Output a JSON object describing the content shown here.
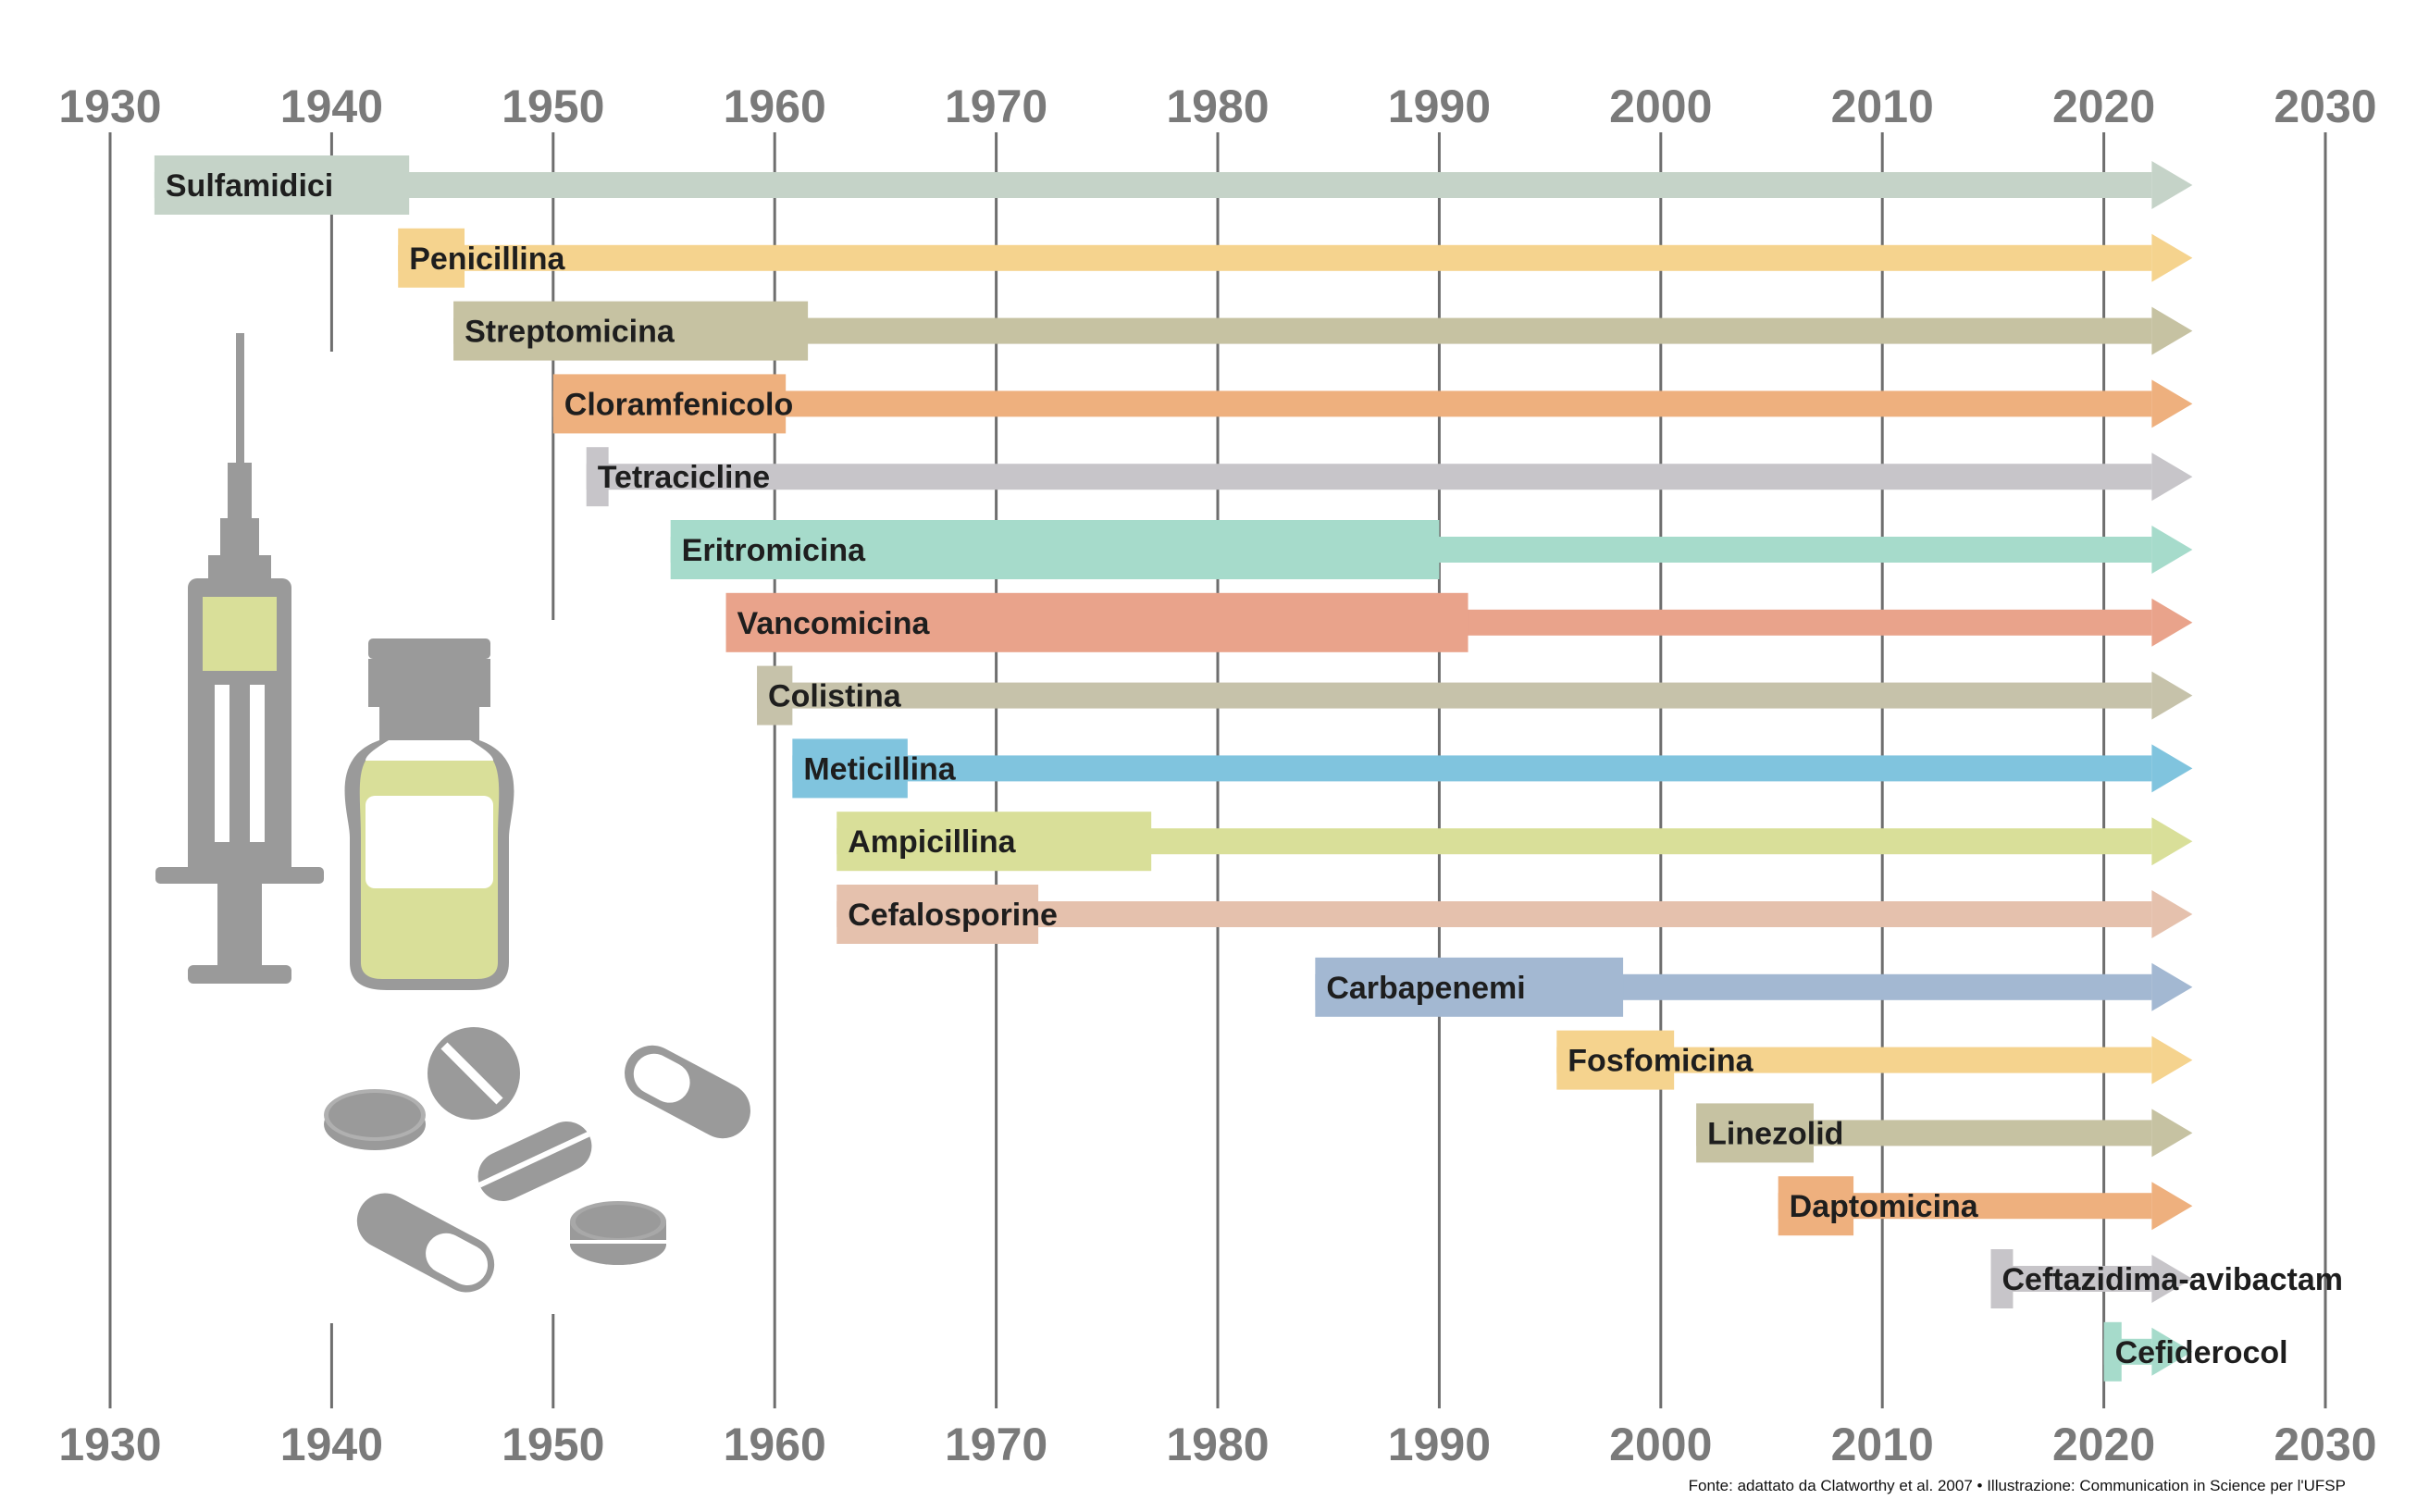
{
  "chart_data": {
    "type": "timeline",
    "x_axis_ticks": [
      1930,
      1940,
      1950,
      1960,
      1970,
      1980,
      1990,
      2000,
      2010,
      2020,
      2030
    ],
    "xlim": [
      1930,
      2030
    ],
    "grid": true,
    "arrow_end": 2024,
    "series": [
      {
        "name": "Sulfamidici",
        "start": 1932,
        "end": 1943.5,
        "color": "#c5d3c8"
      },
      {
        "name": "Penicillina",
        "start": 1943,
        "end": 1946,
        "color": "#f5d38e"
      },
      {
        "name": "Streptomicina",
        "start": 1945.5,
        "end": 1961.5,
        "color": "#c6c2a2"
      },
      {
        "name": "Cloramfenicolo",
        "start": 1950,
        "end": 1960.5,
        "color": "#eeb07e"
      },
      {
        "name": "Tetracicline",
        "start": 1951.5,
        "end": 1952.5,
        "color": "#c7c5c9"
      },
      {
        "name": "Eritromicina",
        "start": 1955.3,
        "end": 1990,
        "color": "#a6dbcb"
      },
      {
        "name": "Vancomicina",
        "start": 1957.8,
        "end": 1991.3,
        "color": "#e9a38b"
      },
      {
        "name": "Colistina",
        "start": 1959.2,
        "end": 1960.8,
        "color": "#c6c2aa"
      },
      {
        "name": "Meticillina",
        "start": 1960.8,
        "end": 1966,
        "color": "#80c4de"
      },
      {
        "name": "Ampicillina",
        "start": 1962.8,
        "end": 1977,
        "color": "#d9df99"
      },
      {
        "name": "Cefalosporine",
        "start": 1962.8,
        "end": 1971.9,
        "color": "#e5c1ad"
      },
      {
        "name": "Carbapenemi",
        "start": 1984.4,
        "end": 1998.3,
        "color": "#a3b8d2"
      },
      {
        "name": "Fosfomicina",
        "start": 1995.3,
        "end": 2000.6,
        "color": "#f5d38e"
      },
      {
        "name": "Linezolid",
        "start": 2001.6,
        "end": 2006.9,
        "color": "#c6c2a2"
      },
      {
        "name": "Daptomicina",
        "start": 2005.3,
        "end": 2008.7,
        "color": "#eeb07e"
      },
      {
        "name": "Ceftazidima-avibactam",
        "start": 2014.9,
        "end": 2015.9,
        "color": "#c7c5c9"
      },
      {
        "name": "Cefiderocol",
        "start": 2020,
        "end": 2020.8,
        "color": "#a6dbcb"
      }
    ]
  },
  "illustration": {
    "icons": [
      "syringe-icon",
      "vial-icon",
      "pills-icon"
    ],
    "gray": "#9a9a9a",
    "liquid": "#d9df99"
  },
  "footer": {
    "source": "Fonte: adattato da Clatworthy et al. 2007  •  Illustrazione: Communication in Science per l'UFSP"
  }
}
